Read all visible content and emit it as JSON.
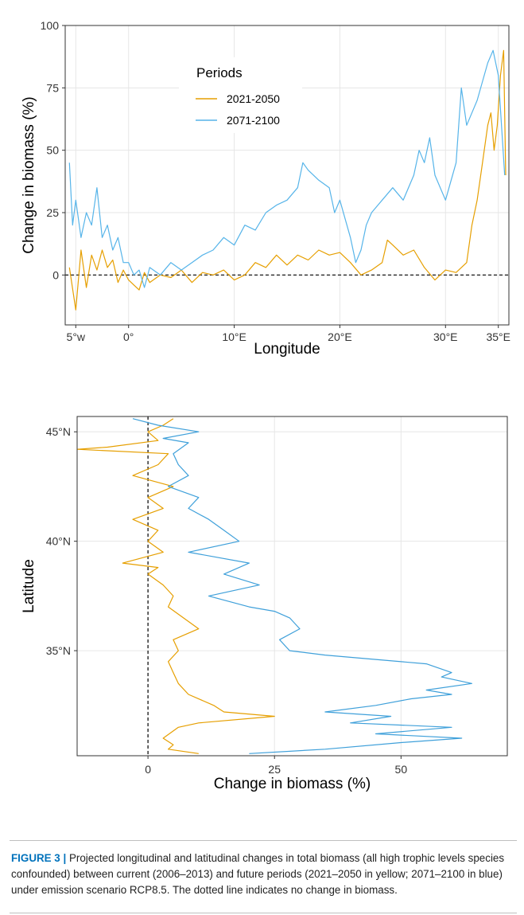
{
  "chart_data": [
    {
      "type": "line",
      "xlabel": "Longitude",
      "ylabel": "Change in biomass (%)",
      "xlim": [
        -6,
        36
      ],
      "ylim": [
        -20,
        100
      ],
      "x_ticks": [
        {
          "value": -5,
          "label": "5°w"
        },
        {
          "value": 0,
          "label": "0°"
        },
        {
          "value": 10,
          "label": "10°E"
        },
        {
          "value": 20,
          "label": "20°E"
        },
        {
          "value": 30,
          "label": "30°E"
        },
        {
          "value": 35,
          "label": "35°E"
        }
      ],
      "y_ticks": [
        {
          "value": 0,
          "label": "0"
        },
        {
          "value": 25,
          "label": "25"
        },
        {
          "value": 50,
          "label": "50"
        },
        {
          "value": 75,
          "label": "75"
        },
        {
          "value": 100,
          "label": "100"
        }
      ],
      "reference_line": {
        "y": 0,
        "style": "dashed"
      },
      "grid": true,
      "legend": {
        "title": "Periods",
        "placement": "top-center"
      },
      "series": [
        {
          "name": "2021-2050",
          "color": "#E69F00",
          "x": [
            -5.6,
            -5.0,
            -4.5,
            -4.0,
            -3.5,
            -3.0,
            -2.5,
            -2.0,
            -1.5,
            -1.0,
            -0.5,
            0.0,
            0.5,
            1.0,
            1.5,
            2.0,
            3.0,
            4.0,
            5.0,
            6.0,
            7.0,
            8.0,
            9.0,
            10.0,
            11.0,
            12.0,
            13.0,
            14.0,
            15.0,
            16.0,
            17.0,
            18.0,
            19.0,
            20.0,
            21.0,
            22.0,
            23.0,
            24.0,
            24.5,
            25.0,
            26.0,
            27.0,
            28.0,
            29.0,
            30.0,
            31.0,
            32.0,
            32.5,
            33.0,
            33.5,
            34.0,
            34.3,
            34.6,
            34.9,
            35.2,
            35.5,
            35.7
          ],
          "y": [
            3,
            -14,
            10,
            -5,
            8,
            2,
            10,
            3,
            6,
            -3,
            2,
            -2,
            -4,
            -6,
            1,
            -3,
            0,
            -1,
            2,
            -3,
            1,
            0,
            2,
            -2,
            0,
            5,
            3,
            8,
            4,
            8,
            6,
            10,
            8,
            9,
            5,
            0,
            2,
            5,
            14,
            12,
            8,
            10,
            3,
            -2,
            2,
            1,
            5,
            20,
            30,
            45,
            60,
            65,
            50,
            60,
            80,
            90,
            40
          ]
        },
        {
          "name": "2071-2100",
          "color": "#56B4E9",
          "x": [
            -5.6,
            -5.3,
            -5.0,
            -4.5,
            -4.0,
            -3.5,
            -3.0,
            -2.5,
            -2.0,
            -1.5,
            -1.0,
            -0.5,
            0.0,
            0.5,
            1.0,
            1.5,
            2.0,
            3.0,
            4.0,
            5.0,
            6.0,
            7.0,
            8.0,
            9.0,
            10.0,
            11.0,
            12.0,
            13.0,
            14.0,
            15.0,
            16.0,
            16.5,
            17.0,
            18.0,
            19.0,
            19.5,
            20.0,
            21.0,
            21.5,
            22.0,
            22.5,
            23.0,
            24.0,
            25.0,
            26.0,
            27.0,
            27.5,
            28.0,
            28.5,
            29.0,
            30.0,
            31.0,
            31.5,
            32.0,
            33.0,
            34.0,
            34.5,
            35.0,
            35.3,
            35.6
          ],
          "y": [
            45,
            20,
            30,
            15,
            25,
            20,
            35,
            15,
            20,
            10,
            15,
            5,
            5,
            0,
            2,
            -5,
            3,
            0,
            5,
            2,
            5,
            8,
            10,
            15,
            12,
            20,
            18,
            25,
            28,
            30,
            35,
            45,
            42,
            38,
            35,
            25,
            30,
            15,
            5,
            10,
            20,
            25,
            30,
            35,
            30,
            40,
            50,
            45,
            55,
            40,
            30,
            45,
            75,
            60,
            70,
            85,
            90,
            80,
            60,
            40
          ]
        }
      ]
    },
    {
      "type": "line",
      "orientation": "vertical",
      "xlabel": "Change in biomass (%)",
      "ylabel": "Latitude",
      "xlim": [
        -14,
        71
      ],
      "ylim": [
        30.2,
        45.7
      ],
      "x_ticks": [
        {
          "value": 0,
          "label": "0"
        },
        {
          "value": 25,
          "label": "25"
        },
        {
          "value": 50,
          "label": "50"
        }
      ],
      "y_ticks": [
        {
          "value": 35,
          "label": "35°N"
        },
        {
          "value": 40,
          "label": "40°N"
        },
        {
          "value": 45,
          "label": "45°N"
        }
      ],
      "reference_line": {
        "x": 0,
        "style": "dashed"
      },
      "grid": true,
      "series": [
        {
          "name": "2021-2050",
          "color": "#E69F00",
          "lat": [
            45.6,
            45.3,
            45.0,
            44.6,
            44.3,
            44.2,
            44.0,
            43.5,
            43.0,
            42.5,
            42.0,
            41.5,
            41.0,
            40.5,
            40.0,
            39.5,
            39.0,
            38.8,
            38.5,
            38.0,
            37.5,
            37.0,
            36.5,
            36.0,
            35.5,
            35.0,
            34.5,
            34.0,
            33.5,
            33.0,
            32.5,
            32.2,
            32.0,
            31.7,
            31.5,
            31.0,
            30.7,
            30.5,
            30.3
          ],
          "x": [
            5,
            3,
            0,
            2,
            -8,
            -14,
            4,
            2,
            -3,
            5,
            0,
            3,
            -3,
            2,
            0,
            3,
            -5,
            2,
            0,
            3,
            5,
            4,
            7,
            10,
            5,
            6,
            4,
            5,
            6,
            8,
            13,
            15,
            25,
            10,
            6,
            3,
            5,
            4,
            10
          ]
        },
        {
          "name": "2071-2100",
          "color": "#3FA0DA",
          "lat": [
            45.6,
            45.3,
            45.0,
            44.7,
            44.5,
            44.0,
            43.5,
            43.0,
            42.5,
            42.0,
            41.5,
            41.0,
            40.5,
            40.0,
            39.5,
            39.0,
            38.5,
            38.0,
            37.5,
            37.0,
            36.8,
            36.5,
            36.0,
            35.5,
            35.0,
            34.8,
            34.6,
            34.4,
            34.0,
            33.8,
            33.5,
            33.2,
            33.0,
            32.8,
            32.5,
            32.2,
            32.0,
            31.7,
            31.5,
            31.2,
            31.0,
            30.8,
            30.5,
            30.3
          ],
          "x": [
            -3,
            2,
            10,
            3,
            8,
            5,
            6,
            8,
            4,
            10,
            8,
            12,
            15,
            18,
            8,
            20,
            15,
            22,
            12,
            20,
            25,
            28,
            30,
            26,
            28,
            35,
            45,
            55,
            60,
            58,
            64,
            55,
            60,
            52,
            45,
            35,
            48,
            40,
            60,
            45,
            62,
            50,
            35,
            20
          ]
        }
      ]
    }
  ],
  "caption": {
    "label": "FIGURE 3 |",
    "text": " Projected longitudinal and latitudinal changes in total biomass (all high trophic levels species confounded) between current (2006–2013) and future periods (2021–2050 in yellow; 2071–2100 in blue) under emission scenario RCP8.5. The dotted line indicates no change in biomass."
  }
}
